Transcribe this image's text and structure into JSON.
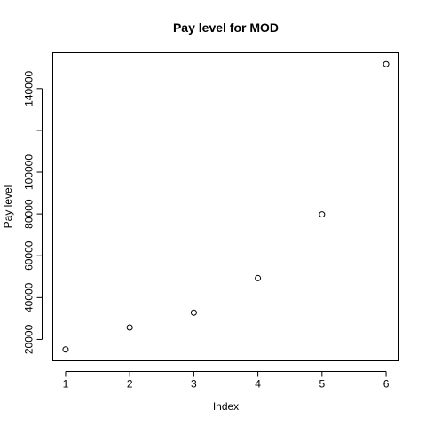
{
  "chart_data": {
    "type": "scatter",
    "title": "Pay level for  MOD",
    "xlabel": "Index",
    "ylabel": "Pay level",
    "x": [
      1,
      2,
      3,
      4,
      5,
      6
    ],
    "y": [
      15200,
      25700,
      32800,
      49300,
      79800,
      151700
    ],
    "xticks": [
      1,
      2,
      3,
      4,
      5,
      6
    ],
    "yticks": [
      20000,
      40000,
      60000,
      80000,
      100000,
      120000,
      140000
    ],
    "ytick_labels": [
      "20000",
      "40000",
      "60000",
      "80000",
      "100000",
      "",
      "140000"
    ],
    "xlim": [
      0.8,
      6.2
    ],
    "ylim": [
      9780,
      157120
    ],
    "grid": false,
    "marker": "open-circle"
  }
}
